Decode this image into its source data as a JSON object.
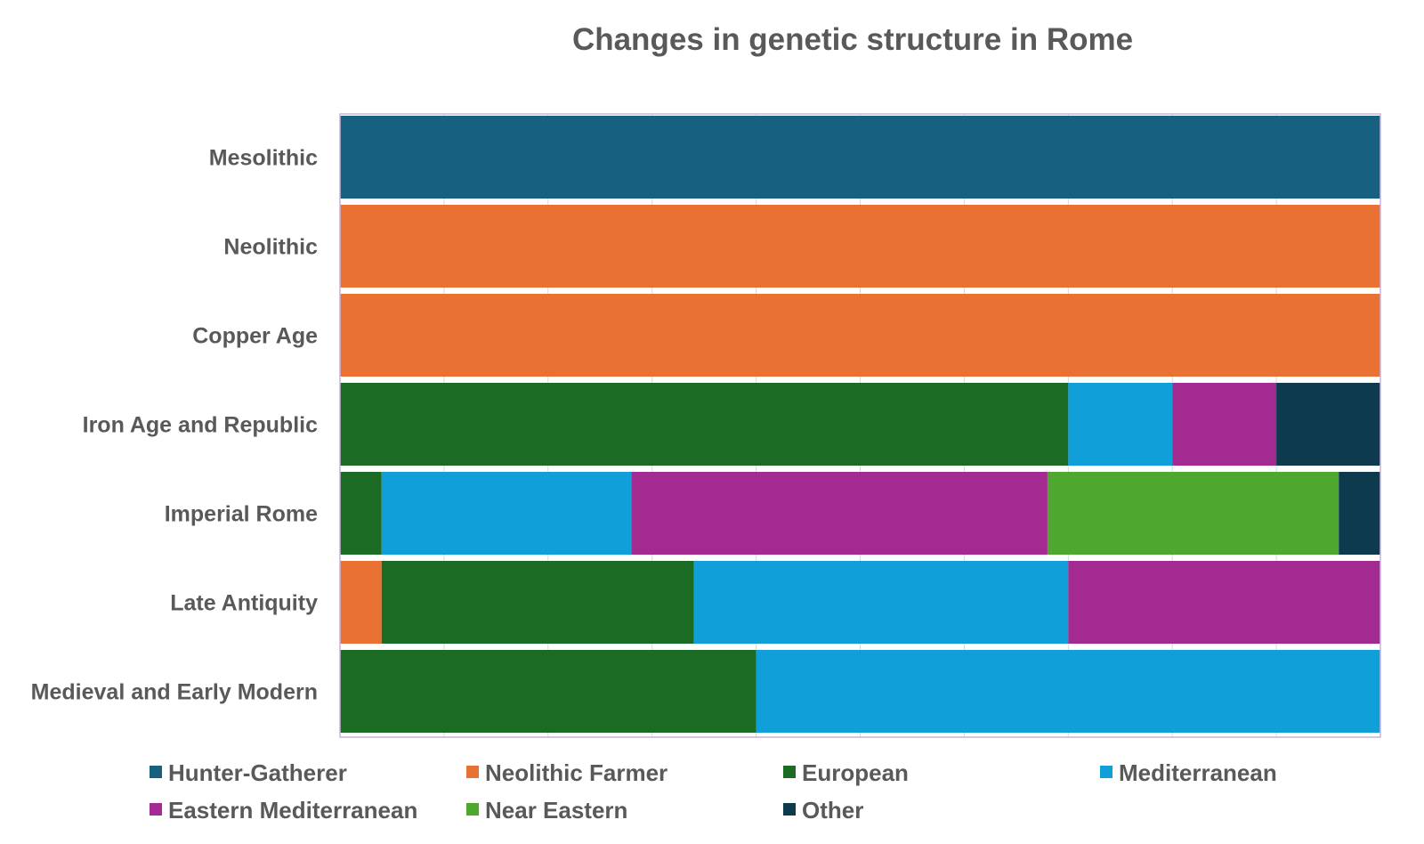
{
  "chart_data": {
    "type": "bar",
    "orientation": "horizontal",
    "stacked": "percent",
    "title": "Changes in genetic structure in Rome",
    "xlabel": "",
    "ylabel": "",
    "xlim": [
      0,
      100
    ],
    "grid": true,
    "legend_position": "bottom",
    "categories": [
      "Mesolithic",
      "Neolithic",
      "Copper Age",
      "Iron Age and Republic",
      "Imperial Rome",
      "Late Antiquity",
      "Medieval and Early Modern"
    ],
    "series": [
      {
        "name": "Hunter-Gatherer",
        "color": "#17607f",
        "values": [
          100,
          0,
          0,
          0,
          0,
          0,
          0
        ]
      },
      {
        "name": "Neolithic Farmer",
        "color": "#e87133",
        "values": [
          0,
          100,
          100,
          0,
          0,
          4,
          0
        ]
      },
      {
        "name": "European",
        "color": "#1b6b25",
        "values": [
          0,
          0,
          0,
          70,
          4,
          30,
          40
        ]
      },
      {
        "name": "Mediterranean",
        "color": "#109fd8",
        "values": [
          0,
          0,
          0,
          10,
          24,
          36,
          60
        ]
      },
      {
        "name": "Eastern Mediterranean",
        "color": "#a32a90",
        "values": [
          0,
          0,
          0,
          10,
          40,
          30,
          0
        ]
      },
      {
        "name": "Near Eastern",
        "color": "#4ea830",
        "values": [
          0,
          0,
          0,
          0,
          28,
          0,
          0
        ]
      },
      {
        "name": "Other",
        "color": "#0e3a4e",
        "values": [
          0,
          0,
          0,
          10,
          4,
          0,
          0
        ]
      }
    ]
  }
}
